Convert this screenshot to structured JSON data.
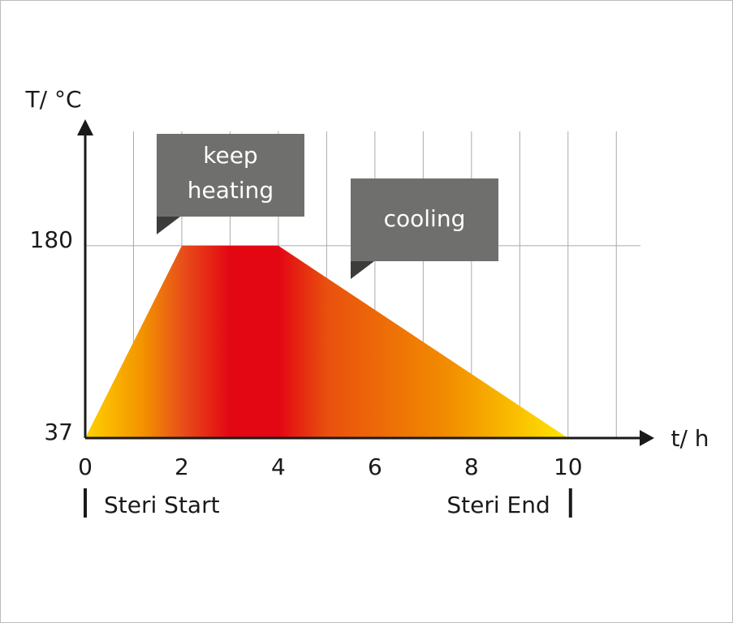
{
  "chart_data": {
    "type": "area",
    "x_label": "t/ h",
    "y_label": "T/ °C",
    "x": [
      0,
      2,
      4,
      10
    ],
    "values": [
      37,
      180,
      180,
      37
    ],
    "xlim": [
      0,
      11.5
    ],
    "ylim": [
      37,
      265
    ],
    "xticks": [
      0,
      2,
      4,
      6,
      8,
      10
    ],
    "yticks": [
      37,
      180
    ],
    "xgrid": [
      1,
      2,
      3,
      4,
      5,
      6,
      7,
      8,
      9,
      10,
      11
    ],
    "grid": true,
    "annotations": [
      [
        "keep",
        "heating"
      ],
      [
        "cooling"
      ]
    ],
    "markers": [
      {
        "x": 0,
        "label": "Steri Start"
      },
      {
        "x": 10,
        "label": "Steri End"
      }
    ]
  }
}
